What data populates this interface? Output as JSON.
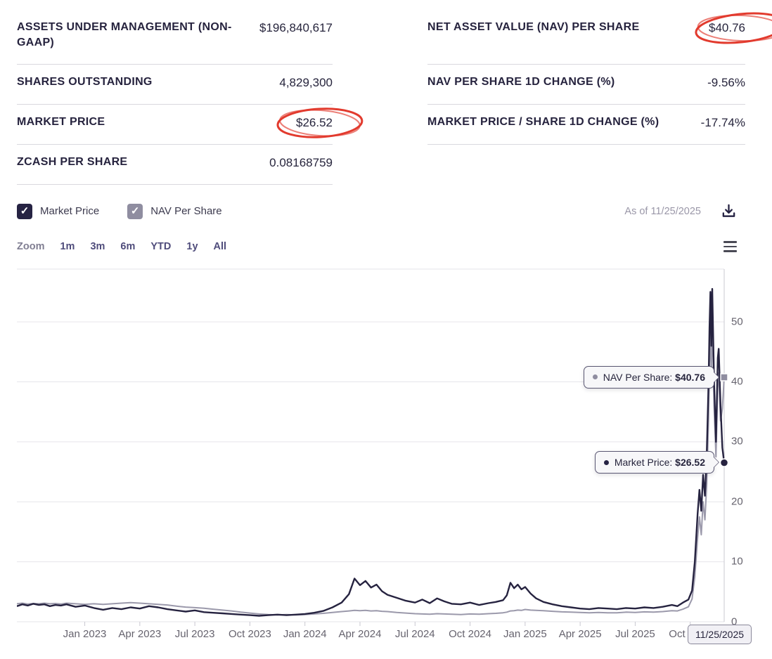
{
  "stats": {
    "left": [
      {
        "label": "ASSETS UNDER MANAGEMENT (NON-GAAP)",
        "value": "$196,840,617",
        "circled": false
      },
      {
        "label": "SHARES OUTSTANDING",
        "value": "4,829,300",
        "circled": false
      },
      {
        "label": "MARKET PRICE",
        "value": "$26.52",
        "circled": true
      },
      {
        "label": "ZCASH PER SHARE",
        "value": "0.08168759",
        "circled": false
      }
    ],
    "right": [
      {
        "label": "NET ASSET VALUE (NAV) PER SHARE",
        "value": "$40.76",
        "circled": true
      },
      {
        "label": "NAV PER SHARE 1D CHANGE (%)",
        "value": "-9.56%",
        "circled": false
      },
      {
        "label": "MARKET PRICE / SHARE 1D CHANGE (%)",
        "value": "-17.74%",
        "circled": false
      }
    ]
  },
  "legend": {
    "items": [
      {
        "label": "Market Price",
        "checked": true,
        "color": "#262343"
      },
      {
        "label": "NAV Per Share",
        "checked": true,
        "color": "#8F8DA0"
      }
    ],
    "as_of": "As of 11/25/2025"
  },
  "range_selector": {
    "zoom_label": "Zoom",
    "buttons": [
      "1m",
      "3m",
      "6m",
      "YTD",
      "1y",
      "All"
    ]
  },
  "tooltips": {
    "nav": {
      "label": "NAV Per Share: ",
      "value": "$40.76"
    },
    "market": {
      "label": "Market Price: ",
      "value": "$26.52"
    },
    "date": "11/25/2025"
  },
  "colors": {
    "text_dark": "#26243C",
    "divider": "#D9D8DE",
    "annotation_red": "#E23B2E",
    "market_line": "#262340",
    "nav_line": "#9B99AB",
    "axis_label": "#66636E",
    "muted": "#9A97A8"
  },
  "chart_data": {
    "type": "line",
    "title": "",
    "xlabel": "",
    "ylabel": "",
    "x_unit": "months since 2022-12-01",
    "xlim": [
      -2.7,
      35.85
    ],
    "ylim": [
      0,
      58.8
    ],
    "grid": true,
    "y_axis_position": "right",
    "y_ticks": [
      0,
      10,
      20,
      30,
      40,
      50
    ],
    "x_ticks": [
      {
        "x": 1,
        "label": "Jan 2023"
      },
      {
        "x": 4,
        "label": "Apr 2023"
      },
      {
        "x": 7,
        "label": "Jul 2023"
      },
      {
        "x": 10,
        "label": "Oct 2023"
      },
      {
        "x": 13,
        "label": "Jan 2024"
      },
      {
        "x": 16,
        "label": "Apr 2024"
      },
      {
        "x": 19,
        "label": "Jul 2024"
      },
      {
        "x": 22,
        "label": "Oct 2024"
      },
      {
        "x": 25,
        "label": "Jan 2025"
      },
      {
        "x": 28,
        "label": "Apr 2025"
      },
      {
        "x": 31,
        "label": "Jul 2025"
      },
      {
        "x": 34,
        "label": "Oct 2025"
      }
    ],
    "series": [
      {
        "name": "Market Price",
        "color": "#262340",
        "width": 2.4,
        "points": [
          [
            -2.7,
            2.6
          ],
          [
            -2.4,
            2.9
          ],
          [
            -2.1,
            2.7
          ],
          [
            -1.8,
            3.0
          ],
          [
            -1.5,
            2.8
          ],
          [
            -1.2,
            2.9
          ],
          [
            -0.9,
            2.6
          ],
          [
            -0.6,
            2.8
          ],
          [
            -0.3,
            2.7
          ],
          [
            0,
            2.9
          ],
          [
            0.5,
            2.5
          ],
          [
            1,
            2.7
          ],
          [
            1.5,
            2.3
          ],
          [
            2,
            2.0
          ],
          [
            2.5,
            2.3
          ],
          [
            3,
            2.1
          ],
          [
            3.5,
            2.4
          ],
          [
            4,
            2.2
          ],
          [
            4.5,
            2.6
          ],
          [
            5,
            2.4
          ],
          [
            5.5,
            2.1
          ],
          [
            6,
            1.9
          ],
          [
            6.5,
            1.7
          ],
          [
            7,
            1.9
          ],
          [
            7.5,
            1.6
          ],
          [
            8,
            1.5
          ],
          [
            8.5,
            1.4
          ],
          [
            9,
            1.3
          ],
          [
            9.5,
            1.2
          ],
          [
            10,
            1.1
          ],
          [
            10.5,
            1.0
          ],
          [
            11,
            1.1
          ],
          [
            11.5,
            1.2
          ],
          [
            12,
            1.1
          ],
          [
            12.5,
            1.2
          ],
          [
            13,
            1.3
          ],
          [
            13.5,
            1.5
          ],
          [
            14,
            1.8
          ],
          [
            14.5,
            2.4
          ],
          [
            15,
            3.2
          ],
          [
            15.4,
            4.6
          ],
          [
            15.7,
            7.2
          ],
          [
            16,
            6.1
          ],
          [
            16.3,
            6.8
          ],
          [
            16.6,
            5.7
          ],
          [
            16.9,
            6.2
          ],
          [
            17.2,
            5.1
          ],
          [
            17.5,
            4.5
          ],
          [
            18,
            4.0
          ],
          [
            18.5,
            3.5
          ],
          [
            19,
            3.2
          ],
          [
            19.4,
            3.7
          ],
          [
            19.8,
            3.1
          ],
          [
            20.2,
            3.9
          ],
          [
            20.6,
            3.4
          ],
          [
            21,
            3.0
          ],
          [
            21.5,
            2.9
          ],
          [
            22,
            3.2
          ],
          [
            22.5,
            2.8
          ],
          [
            23,
            3.1
          ],
          [
            23.4,
            3.3
          ],
          [
            23.8,
            3.6
          ],
          [
            24,
            4.4
          ],
          [
            24.2,
            6.5
          ],
          [
            24.4,
            5.6
          ],
          [
            24.6,
            6.2
          ],
          [
            24.8,
            5.4
          ],
          [
            25,
            5.8
          ],
          [
            25.3,
            4.7
          ],
          [
            25.6,
            3.9
          ],
          [
            26,
            3.3
          ],
          [
            26.5,
            2.9
          ],
          [
            27,
            2.6
          ],
          [
            27.5,
            2.4
          ],
          [
            28,
            2.2
          ],
          [
            28.5,
            2.1
          ],
          [
            29,
            2.3
          ],
          [
            29.5,
            2.2
          ],
          [
            30,
            2.1
          ],
          [
            30.5,
            2.3
          ],
          [
            31,
            2.2
          ],
          [
            31.5,
            2.4
          ],
          [
            32,
            2.3
          ],
          [
            32.5,
            2.5
          ],
          [
            33,
            2.8
          ],
          [
            33.3,
            2.6
          ],
          [
            33.6,
            3.2
          ],
          [
            33.9,
            3.7
          ],
          [
            34.1,
            5.2
          ],
          [
            34.25,
            10
          ],
          [
            34.4,
            18
          ],
          [
            34.5,
            22
          ],
          [
            34.6,
            18.5
          ],
          [
            34.7,
            24.5
          ],
          [
            34.8,
            21
          ],
          [
            34.9,
            28
          ],
          [
            35,
            40
          ],
          [
            35.05,
            49
          ],
          [
            35.1,
            55
          ],
          [
            35.15,
            46
          ],
          [
            35.2,
            55.5
          ],
          [
            35.3,
            40
          ],
          [
            35.4,
            30
          ],
          [
            35.5,
            44
          ],
          [
            35.55,
            45.5
          ],
          [
            35.65,
            36
          ],
          [
            35.75,
            29
          ],
          [
            35.85,
            26.52
          ]
        ]
      },
      {
        "name": "NAV Per Share",
        "color": "#9B99AB",
        "width": 2,
        "points": [
          [
            -2.7,
            3.0
          ],
          [
            -2.4,
            3.1
          ],
          [
            -2.1,
            2.95
          ],
          [
            -1.8,
            3.05
          ],
          [
            -1.5,
            3.0
          ],
          [
            -1.2,
            3.1
          ],
          [
            -0.9,
            3.0
          ],
          [
            -0.6,
            3.05
          ],
          [
            -0.3,
            2.95
          ],
          [
            0,
            3.1
          ],
          [
            0.5,
            3.0
          ],
          [
            1,
            2.9
          ],
          [
            1.5,
            3.0
          ],
          [
            2,
            2.9
          ],
          [
            2.5,
            3.0
          ],
          [
            3,
            3.1
          ],
          [
            3.5,
            3.2
          ],
          [
            4,
            3.1
          ],
          [
            4.5,
            3.0
          ],
          [
            5,
            2.9
          ],
          [
            5.5,
            2.8
          ],
          [
            6,
            2.6
          ],
          [
            6.5,
            2.45
          ],
          [
            7,
            2.35
          ],
          [
            7.5,
            2.25
          ],
          [
            8,
            2.1
          ],
          [
            8.5,
            1.95
          ],
          [
            9,
            1.8
          ],
          [
            9.5,
            1.6
          ],
          [
            10,
            1.45
          ],
          [
            10.5,
            1.3
          ],
          [
            11,
            1.2
          ],
          [
            11.5,
            1.15
          ],
          [
            12,
            1.2
          ],
          [
            12.5,
            1.15
          ],
          [
            13,
            1.2
          ],
          [
            13.5,
            1.3
          ],
          [
            14,
            1.4
          ],
          [
            14.5,
            1.55
          ],
          [
            15,
            1.7
          ],
          [
            15.4,
            1.8
          ],
          [
            15.7,
            1.9
          ],
          [
            16,
            1.85
          ],
          [
            16.3,
            1.9
          ],
          [
            16.6,
            1.8
          ],
          [
            16.9,
            1.85
          ],
          [
            17.2,
            1.75
          ],
          [
            17.5,
            1.7
          ],
          [
            18,
            1.55
          ],
          [
            18.5,
            1.45
          ],
          [
            19,
            1.35
          ],
          [
            19.4,
            1.3
          ],
          [
            19.8,
            1.25
          ],
          [
            20.2,
            1.35
          ],
          [
            20.6,
            1.3
          ],
          [
            21,
            1.25
          ],
          [
            21.5,
            1.2
          ],
          [
            22,
            1.3
          ],
          [
            22.5,
            1.25
          ],
          [
            23,
            1.35
          ],
          [
            23.4,
            1.4
          ],
          [
            23.8,
            1.5
          ],
          [
            24,
            1.6
          ],
          [
            24.2,
            1.8
          ],
          [
            24.4,
            1.85
          ],
          [
            24.6,
            1.95
          ],
          [
            24.8,
            1.9
          ],
          [
            25,
            2.05
          ],
          [
            25.3,
            1.95
          ],
          [
            25.6,
            1.9
          ],
          [
            26,
            1.85
          ],
          [
            26.5,
            1.75
          ],
          [
            27,
            1.65
          ],
          [
            27.5,
            1.6
          ],
          [
            28,
            1.55
          ],
          [
            28.5,
            1.5
          ],
          [
            29,
            1.55
          ],
          [
            29.5,
            1.5
          ],
          [
            30,
            1.5
          ],
          [
            30.5,
            1.6
          ],
          [
            31,
            1.55
          ],
          [
            31.5,
            1.65
          ],
          [
            32,
            1.6
          ],
          [
            32.5,
            1.7
          ],
          [
            33,
            1.85
          ],
          [
            33.3,
            1.8
          ],
          [
            33.6,
            2.1
          ],
          [
            33.9,
            2.5
          ],
          [
            34.1,
            3.8
          ],
          [
            34.25,
            7.5
          ],
          [
            34.4,
            14
          ],
          [
            34.5,
            17.5
          ],
          [
            34.6,
            14.5
          ],
          [
            34.7,
            20
          ],
          [
            34.8,
            17
          ],
          [
            34.9,
            23
          ],
          [
            35,
            34
          ],
          [
            35.05,
            43
          ],
          [
            35.1,
            49.5
          ],
          [
            35.15,
            41
          ],
          [
            35.2,
            51
          ],
          [
            35.3,
            36
          ],
          [
            35.4,
            27.5
          ],
          [
            35.5,
            39.5
          ],
          [
            35.55,
            41.5
          ],
          [
            35.65,
            33.5
          ],
          [
            35.75,
            35.5
          ],
          [
            35.85,
            40.76
          ]
        ]
      }
    ],
    "end_markers": [
      {
        "series": "NAV Per Share",
        "shape": "square",
        "value": 40.76,
        "color": "#8F8DA0"
      },
      {
        "series": "Market Price",
        "shape": "circle",
        "value": 26.52,
        "color": "#262340"
      }
    ]
  }
}
